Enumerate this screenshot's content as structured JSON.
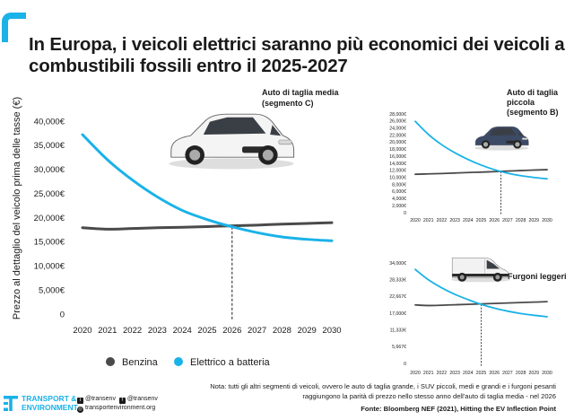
{
  "title": "In Europa, i veicoli elettrici saranno più economici dei veicoli a combustibili fossili entro il 2025-2027",
  "legend": {
    "benzina": "Benzina",
    "elettrico": "Elettrico a batteria"
  },
  "colors": {
    "accent": "#1ab2e8",
    "benzina": "#4a4a4a",
    "elettrico": "#1ab2e8"
  },
  "icons": {
    "logo": "te-logo-icon",
    "twitter": "twitter-icon",
    "facebook": "facebook-icon",
    "web": "globe-icon"
  },
  "note": "Nota: tutti gli altri segmenti di veicoli, ovvero le auto di taglia grande, i SUV piccoli, medi e grandi e i furgoni pesanti raggiungono la parità di prezzo nello stesso anno dell'auto di taglia media - nel 2026",
  "source": "Fonte: Bloomberg NEF (2021), Hitting the EV Inflection Point",
  "logo": {
    "line1": "TRANSPORT &",
    "line2": "ENVIRONMENT"
  },
  "social": {
    "twitter": "@transenv",
    "facebook": "@transenv",
    "web": "transportenvironment.org"
  },
  "chart_data": [
    {
      "type": "line",
      "title": "Auto di taglia media (segmento C)",
      "ylabel": "Prezzo al dettaglio del veicolo prima delle tasse (€)",
      "x": [
        2020,
        2021,
        2022,
        2023,
        2024,
        2025,
        2026,
        2027,
        2028,
        2029,
        2030
      ],
      "yticks": [
        "0",
        "5,000€",
        "10,000€",
        "15,000€",
        "20,000€",
        "25,000€",
        "30,000€",
        "35,000€",
        "40,000€"
      ],
      "ylim": [
        0,
        40000
      ],
      "series": [
        {
          "name": "Benzina",
          "values": [
            17900,
            17600,
            17750,
            17900,
            18000,
            18150,
            18300,
            18450,
            18650,
            18800,
            18950
          ]
        },
        {
          "name": "Elettrico a batteria",
          "values": [
            37200,
            32000,
            27800,
            24300,
            21500,
            19600,
            18100,
            16900,
            16000,
            15500,
            15200
          ]
        }
      ],
      "parity_year": 2026
    },
    {
      "type": "line",
      "title": "Auto di taglia piccola (segmento B)",
      "x": [
        2020,
        2021,
        2022,
        2023,
        2024,
        2025,
        2026,
        2027,
        2028,
        2029,
        2030
      ],
      "yticks": [
        "0",
        "2,000€",
        "4,000€",
        "6,000€",
        "8,000€",
        "10,000€",
        "12,000€",
        "14,000€",
        "16,000€",
        "18,000€",
        "20,000€",
        "22,000€",
        "24,000€",
        "26,000€",
        "28,000€"
      ],
      "ylim": [
        0,
        28000
      ],
      "series": [
        {
          "name": "Benzina",
          "values": [
            10900,
            11000,
            11100,
            11250,
            11400,
            11500,
            11650,
            11800,
            11950,
            12100,
            12200
          ]
        },
        {
          "name": "Elettrico a batteria",
          "values": [
            25900,
            22200,
            19300,
            17000,
            15100,
            13500,
            12200,
            11200,
            10500,
            10000,
            9600
          ]
        }
      ],
      "parity_year": 2026.5
    },
    {
      "type": "line",
      "title": "Furgoni leggeri",
      "x": [
        2020,
        2021,
        2022,
        2023,
        2024,
        2025,
        2026,
        2027,
        2028,
        2029,
        2030
      ],
      "yticks": [
        "0",
        "5,667€",
        "11,333€",
        "17,000€",
        "22,667€",
        "28,333€",
        "34,000€"
      ],
      "ylim": [
        0,
        34000
      ],
      "series": [
        {
          "name": "Benzina",
          "values": [
            19800,
            19600,
            19700,
            19850,
            20000,
            20150,
            20300,
            20450,
            20600,
            20750,
            20900
          ]
        },
        {
          "name": "Elettrico a batteria",
          "values": [
            31800,
            28300,
            25600,
            23400,
            21600,
            20000,
            18700,
            17700,
            16900,
            16300,
            15800
          ]
        }
      ],
      "parity_year": 2025
    }
  ]
}
